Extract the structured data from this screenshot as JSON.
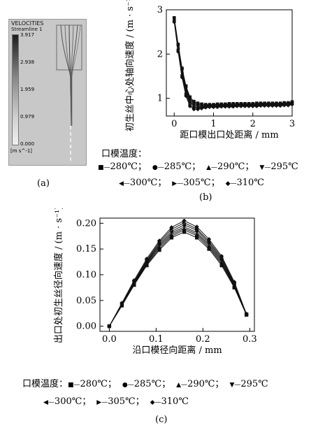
{
  "panel_a": {
    "label": "(a)",
    "title": "VELOCITIES",
    "subtitle": "Streamline 1",
    "unit": "[m s^-1]",
    "scale_values": [
      "3.917",
      "2.938",
      "1.959",
      "0.979",
      "0.000"
    ]
  },
  "chart_data": [
    {
      "type": "line",
      "panel": "(b)",
      "xlabel": "距口模出口处距离 / mm",
      "ylabel": "初生丝中心处轴向速度 / (m · s⁻¹)",
      "xlim": [
        -0.2,
        3.0
      ],
      "ylim": [
        0.6,
        3.0
      ],
      "xticks": [
        "0",
        "1",
        "2",
        "3"
      ],
      "yticks": [
        "1",
        "2",
        "3"
      ],
      "legend_title": "口模温度：",
      "x": [
        0,
        0.1,
        0.2,
        0.3,
        0.4,
        0.5,
        0.6,
        0.7,
        0.8,
        0.9,
        1.0,
        1.1,
        1.2,
        1.3,
        1.4,
        1.5,
        1.6,
        1.7,
        1.8,
        1.9,
        2.0,
        2.1,
        2.2,
        2.3,
        2.4,
        2.5,
        2.6,
        2.7,
        2.8,
        2.9,
        3.0
      ],
      "series": [
        {
          "name": "280℃",
          "marker": "square",
          "values": [
            2.82,
            2.22,
            1.68,
            1.28,
            1.03,
            0.93,
            0.89,
            0.87,
            0.86,
            0.86,
            0.86,
            0.87,
            0.87,
            0.87,
            0.88,
            0.88,
            0.88,
            0.88,
            0.88,
            0.88,
            0.88,
            0.89,
            0.89,
            0.89,
            0.89,
            0.89,
            0.89,
            0.89,
            0.9,
            0.9,
            0.92
          ]
        },
        {
          "name": "285℃",
          "marker": "circle",
          "values": [
            2.8,
            2.2,
            1.65,
            1.25,
            1.0,
            0.9,
            0.86,
            0.85,
            0.85,
            0.85,
            0.85,
            0.86,
            0.86,
            0.86,
            0.86,
            0.87,
            0.87,
            0.87,
            0.87,
            0.87,
            0.87,
            0.88,
            0.88,
            0.88,
            0.88,
            0.88,
            0.88,
            0.88,
            0.89,
            0.89,
            0.91
          ]
        },
        {
          "name": "290℃",
          "marker": "triangle-up",
          "values": [
            2.79,
            2.18,
            1.62,
            1.21,
            0.97,
            0.87,
            0.84,
            0.83,
            0.83,
            0.84,
            0.84,
            0.84,
            0.85,
            0.85,
            0.85,
            0.85,
            0.86,
            0.86,
            0.86,
            0.86,
            0.86,
            0.86,
            0.87,
            0.87,
            0.87,
            0.87,
            0.87,
            0.87,
            0.88,
            0.88,
            0.9
          ]
        },
        {
          "name": "295℃",
          "marker": "triangle-down",
          "values": [
            2.77,
            2.15,
            1.58,
            1.17,
            0.93,
            0.84,
            0.82,
            0.81,
            0.82,
            0.83,
            0.83,
            0.83,
            0.84,
            0.84,
            0.84,
            0.84,
            0.85,
            0.85,
            0.85,
            0.85,
            0.85,
            0.85,
            0.86,
            0.86,
            0.86,
            0.86,
            0.86,
            0.86,
            0.87,
            0.87,
            0.89
          ]
        },
        {
          "name": "300℃",
          "marker": "triangle-left",
          "values": [
            2.76,
            2.12,
            1.55,
            1.13,
            0.9,
            0.81,
            0.79,
            0.8,
            0.81,
            0.82,
            0.82,
            0.82,
            0.83,
            0.83,
            0.83,
            0.83,
            0.84,
            0.84,
            0.84,
            0.84,
            0.84,
            0.84,
            0.85,
            0.85,
            0.85,
            0.85,
            0.85,
            0.85,
            0.86,
            0.86,
            0.88
          ]
        },
        {
          "name": "305℃",
          "marker": "triangle-right",
          "values": [
            2.74,
            2.09,
            1.51,
            1.09,
            0.86,
            0.78,
            0.77,
            0.78,
            0.8,
            0.81,
            0.81,
            0.81,
            0.82,
            0.82,
            0.82,
            0.82,
            0.83,
            0.83,
            0.83,
            0.83,
            0.83,
            0.83,
            0.84,
            0.84,
            0.84,
            0.84,
            0.84,
            0.84,
            0.85,
            0.85,
            0.87
          ]
        },
        {
          "name": "310℃",
          "marker": "diamond",
          "values": [
            2.72,
            2.05,
            1.47,
            1.05,
            0.82,
            0.75,
            0.75,
            0.77,
            0.79,
            0.8,
            0.8,
            0.8,
            0.81,
            0.81,
            0.81,
            0.81,
            0.82,
            0.82,
            0.82,
            0.82,
            0.82,
            0.82,
            0.83,
            0.83,
            0.83,
            0.83,
            0.83,
            0.83,
            0.84,
            0.84,
            0.86
          ]
        }
      ]
    },
    {
      "type": "line",
      "panel": "(c)",
      "xlabel": "沿口模径向距离 / mm",
      "ylabel": "出口处初生丝径向速度 / (m · s⁻¹)",
      "xlim": [
        -0.02,
        0.31
      ],
      "ylim": [
        -0.01,
        0.21
      ],
      "xticks": [
        "0.0",
        "0.1",
        "0.2",
        "0.3"
      ],
      "yticks": [
        "0.00",
        "0.05",
        "0.10",
        "0.15",
        "0.20"
      ],
      "legend_title": "口模温度：",
      "x": [
        0,
        0.027,
        0.053,
        0.08,
        0.107,
        0.133,
        0.16,
        0.187,
        0.213,
        0.24,
        0.267,
        0.293
      ],
      "series": [
        {
          "name": "280℃",
          "marker": "square",
          "values": [
            0.0,
            0.04,
            0.08,
            0.118,
            0.148,
            0.172,
            0.183,
            0.172,
            0.15,
            0.118,
            0.075,
            0.022
          ]
        },
        {
          "name": "285℃",
          "marker": "circle",
          "values": [
            0.0,
            0.041,
            0.082,
            0.12,
            0.151,
            0.175,
            0.187,
            0.176,
            0.153,
            0.121,
            0.077,
            0.022
          ]
        },
        {
          "name": "290℃",
          "marker": "triangle-up",
          "values": [
            0.0,
            0.042,
            0.083,
            0.122,
            0.154,
            0.178,
            0.19,
            0.179,
            0.156,
            0.124,
            0.078,
            0.022
          ]
        },
        {
          "name": "295℃",
          "marker": "triangle-down",
          "values": [
            0.0,
            0.043,
            0.084,
            0.124,
            0.157,
            0.181,
            0.193,
            0.182,
            0.159,
            0.127,
            0.08,
            0.023
          ]
        },
        {
          "name": "300℃",
          "marker": "triangle-left",
          "values": [
            0.0,
            0.043,
            0.086,
            0.126,
            0.16,
            0.184,
            0.197,
            0.186,
            0.162,
            0.13,
            0.082,
            0.023
          ]
        },
        {
          "name": "305℃",
          "marker": "triangle-right",
          "values": [
            0.0,
            0.044,
            0.087,
            0.128,
            0.163,
            0.188,
            0.201,
            0.189,
            0.165,
            0.133,
            0.084,
            0.023
          ]
        },
        {
          "name": "310℃",
          "marker": "diamond",
          "values": [
            0.0,
            0.045,
            0.089,
            0.131,
            0.166,
            0.192,
            0.205,
            0.193,
            0.169,
            0.136,
            0.086,
            0.024
          ]
        }
      ]
    }
  ],
  "labels": {
    "b": "(b)",
    "c": "(c)"
  }
}
